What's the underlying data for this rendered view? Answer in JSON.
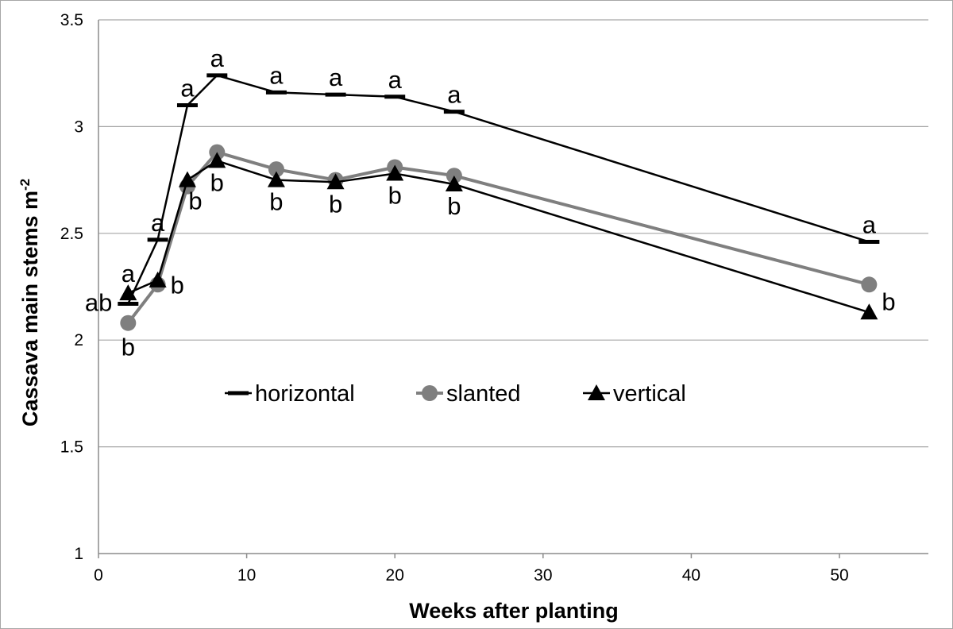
{
  "chart_data": {
    "type": "line",
    "xlabel": "Weeks after planting",
    "ylabel": "Cassava main stems m",
    "ylabel_superscript": "-2",
    "xlim": [
      0,
      56
    ],
    "ylim": [
      1,
      3.5
    ],
    "x_ticks": [
      "0",
      "10",
      "20",
      "30",
      "40",
      "50"
    ],
    "y_ticks": [
      "1",
      "1.5",
      "2",
      "2.5",
      "3",
      "3.5"
    ],
    "grid": "horizontal",
    "legend_position": "center",
    "series": [
      {
        "name": "horizontal",
        "marker": "dash",
        "color": "#000000",
        "x": [
          2,
          4,
          6,
          8,
          12,
          16,
          20,
          24,
          52
        ],
        "y": [
          2.17,
          2.47,
          3.1,
          3.24,
          3.16,
          3.15,
          3.14,
          3.07,
          2.46
        ],
        "labels": [
          "ab",
          "a",
          "a",
          "a",
          "a",
          "a",
          "a",
          "a",
          "a"
        ]
      },
      {
        "name": "slanted",
        "marker": "circle",
        "color": "#7f7f7f",
        "x": [
          2,
          4,
          6,
          8,
          12,
          16,
          20,
          24,
          52
        ],
        "y": [
          2.08,
          2.26,
          2.72,
          2.88,
          2.8,
          2.75,
          2.81,
          2.77,
          2.26
        ],
        "labels": [
          "b",
          "b",
          "",
          "",
          "",
          "",
          "",
          "",
          ""
        ]
      },
      {
        "name": "vertical",
        "marker": "triangle",
        "color": "#000000",
        "x": [
          2,
          4,
          6,
          8,
          12,
          16,
          20,
          24,
          52
        ],
        "y": [
          2.22,
          2.28,
          2.75,
          2.84,
          2.75,
          2.74,
          2.78,
          2.73,
          2.13
        ],
        "labels": [
          "a",
          "",
          "b",
          "b",
          "b",
          "b",
          "b",
          "b",
          "b"
        ]
      }
    ]
  }
}
